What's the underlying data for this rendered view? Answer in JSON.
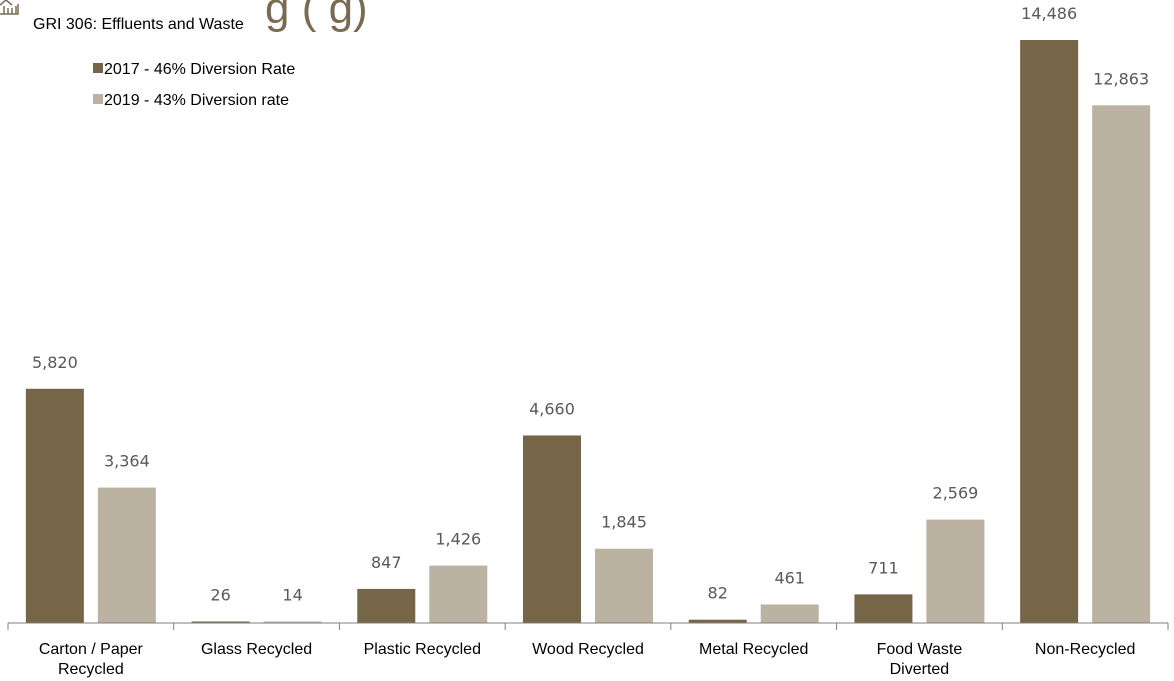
{
  "header": {
    "title_partial": "g      (  g)",
    "subtitle": "GRI 306: Effluents and Waste",
    "logo_icon": "building-outline-icon"
  },
  "colors": {
    "series_2017": "#776548",
    "series_2019": "#bbb2a1",
    "axis": "#7f7f7f",
    "label": "#595959"
  },
  "chart_data": {
    "type": "bar",
    "categories": [
      [
        "Carton / Paper",
        "Recycled"
      ],
      [
        "Glass Recycled"
      ],
      [
        "Plastic Recycled"
      ],
      [
        "Wood Recycled"
      ],
      [
        "Metal Recycled"
      ],
      [
        "Food Waste",
        "Diverted"
      ],
      [
        "Non-Recycled"
      ]
    ],
    "series": [
      {
        "name": "2017 - 46% Diversion Rate",
        "values": [
          5820,
          26,
          847,
          4660,
          82,
          711,
          14486
        ],
        "labels": [
          "5,820",
          "26",
          "847",
          "4,660",
          "82",
          "711",
          "14,486"
        ]
      },
      {
        "name": "2019 - 43% Diversion rate",
        "values": [
          3364,
          14,
          1426,
          1845,
          461,
          2569,
          12863
        ],
        "labels": [
          "3,364",
          "14",
          "1,426",
          "1,845",
          "461",
          "2,569",
          "12,863"
        ]
      }
    ],
    "ylim": [
      0,
      14486
    ],
    "grid": false,
    "legend": "top-left",
    "xlabel": "",
    "ylabel": ""
  }
}
